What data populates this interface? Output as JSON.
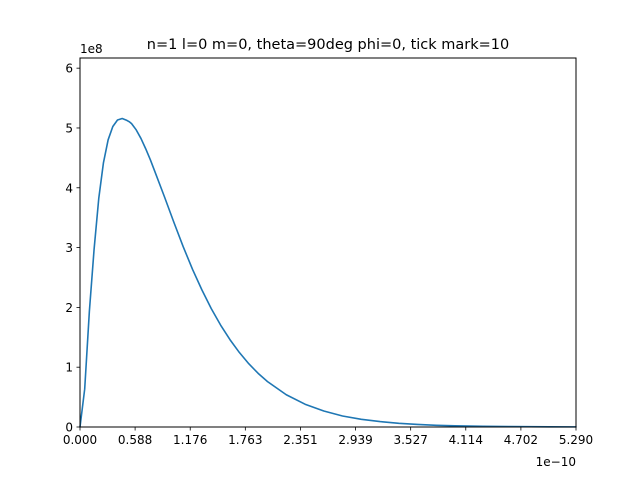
{
  "chart_data": {
    "type": "line",
    "title": "n=1 l=0 m=0, theta=90deg phi=0, tick mark=10",
    "xlabel": "",
    "ylabel": "",
    "x_multiplier_label": "1e−10",
    "y_multiplier_label": "1e8",
    "xlim": [
      0,
      5.29
    ],
    "ylim": [
      0,
      6.17
    ],
    "x_ticks": [
      0,
      0.5878,
      1.1756,
      1.7633,
      2.3511,
      2.9389,
      3.5267,
      4.1144,
      4.7022,
      5.29
    ],
    "x_tick_labels": [
      "0.000",
      "0.588",
      "1.176",
      "1.763",
      "2.351",
      "2.939",
      "3.527",
      "4.114",
      "4.702",
      "5.290"
    ],
    "y_ticks": [
      0,
      1,
      2,
      3,
      4,
      5,
      6
    ],
    "y_tick_labels": [
      "0",
      "1",
      "2",
      "3",
      "4",
      "5",
      "6"
    ],
    "grid": false,
    "legend": "none",
    "series": [
      {
        "color": "#1f77b4",
        "x": [
          0,
          0.05,
          0.1,
          0.15,
          0.2,
          0.25,
          0.3,
          0.35,
          0.4,
          0.45,
          0.5,
          0.529,
          0.55,
          0.6,
          0.65,
          0.7,
          0.75,
          0.8,
          0.9,
          1.0,
          1.1,
          1.2,
          1.3,
          1.4,
          1.5,
          1.6,
          1.7,
          1.8,
          1.9,
          2.0,
          2.2,
          2.4,
          2.6,
          2.8,
          3.0,
          3.2,
          3.4,
          3.6,
          3.8,
          4.0,
          4.3,
          4.6,
          5.0,
          5.29
        ],
        "y": [
          0,
          0.634,
          1.937,
          2.966,
          3.82,
          4.418,
          4.802,
          5.025,
          5.133,
          5.158,
          5.127,
          5.1,
          5.073,
          4.967,
          4.825,
          4.655,
          4.47,
          4.265,
          3.852,
          3.428,
          3.017,
          2.637,
          2.293,
          1.98,
          1.703,
          1.459,
          1.245,
          1.058,
          0.897,
          0.759,
          0.539,
          0.381,
          0.267,
          0.184,
          0.129,
          0.091,
          0.061,
          0.043,
          0.029,
          0.02,
          0.012,
          0.007,
          0.003,
          0.002
        ]
      }
    ]
  }
}
